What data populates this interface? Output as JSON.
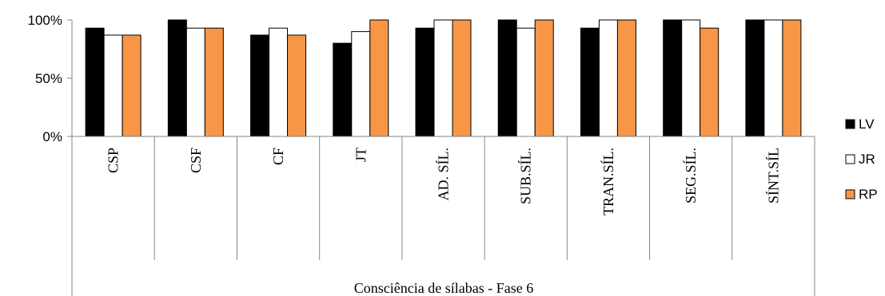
{
  "chart_data": {
    "type": "bar",
    "xlabel": "Consciência de sílabas - Fase 6",
    "ylabel": "",
    "ylim": [
      0,
      100
    ],
    "yticks": [
      "0%",
      "50%",
      "100%"
    ],
    "grid": false,
    "legend_position": "right",
    "categories": [
      "CSP",
      "CSF",
      "CF",
      "JT",
      "AD. SÍL.",
      "SUB.SÍL.",
      "TRAN.SÍL.",
      "SEG.SÍL.",
      "SÍNT.SÍL"
    ],
    "series": [
      {
        "name": "LV",
        "color": "#000000",
        "values": [
          93,
          100,
          87,
          80,
          93,
          100,
          93,
          100,
          100
        ]
      },
      {
        "name": "JR",
        "color": "#ffffff",
        "values": [
          87,
          93,
          93,
          90,
          100,
          93,
          100,
          100,
          100
        ]
      },
      {
        "name": "RP",
        "color": "#f79646",
        "values": [
          87,
          93,
          87,
          100,
          100,
          100,
          100,
          93,
          100
        ]
      }
    ]
  }
}
